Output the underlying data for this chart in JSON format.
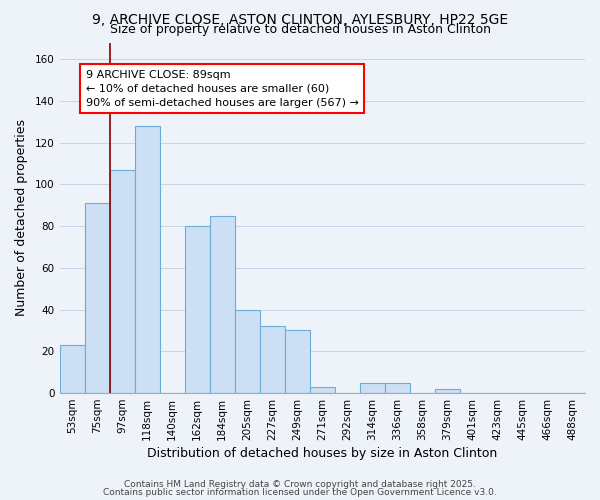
{
  "title": "9, ARCHIVE CLOSE, ASTON CLINTON, AYLESBURY, HP22 5GE",
  "subtitle": "Size of property relative to detached houses in Aston Clinton",
  "xlabel": "Distribution of detached houses by size in Aston Clinton",
  "ylabel": "Number of detached properties",
  "bar_color": "#ccdff5",
  "bar_edge_color": "#6aaed6",
  "background_color": "#eef2f9",
  "categories": [
    "53sqm",
    "75sqm",
    "97sqm",
    "118sqm",
    "140sqm",
    "162sqm",
    "184sqm",
    "205sqm",
    "227sqm",
    "249sqm",
    "271sqm",
    "292sqm",
    "314sqm",
    "336sqm",
    "358sqm",
    "379sqm",
    "401sqm",
    "423sqm",
    "445sqm",
    "466sqm",
    "488sqm"
  ],
  "values": [
    23,
    91,
    107,
    128,
    0,
    80,
    85,
    40,
    32,
    30,
    3,
    0,
    5,
    5,
    0,
    2,
    0,
    0,
    0,
    0,
    0
  ],
  "ylim": [
    0,
    168
  ],
  "yticks": [
    0,
    20,
    40,
    60,
    80,
    100,
    120,
    140,
    160
  ],
  "red_line_index": 2,
  "annotation_text": "9 ARCHIVE CLOSE: 89sqm\n← 10% of detached houses are smaller (60)\n90% of semi-detached houses are larger (567) →",
  "footer_line1": "Contains HM Land Registry data © Crown copyright and database right 2025.",
  "footer_line2": "Contains public sector information licensed under the Open Government Licence v3.0.",
  "title_fontsize": 10,
  "subtitle_fontsize": 9,
  "axis_label_fontsize": 9,
  "tick_fontsize": 7.5,
  "annotation_fontsize": 8,
  "footer_fontsize": 6.5
}
